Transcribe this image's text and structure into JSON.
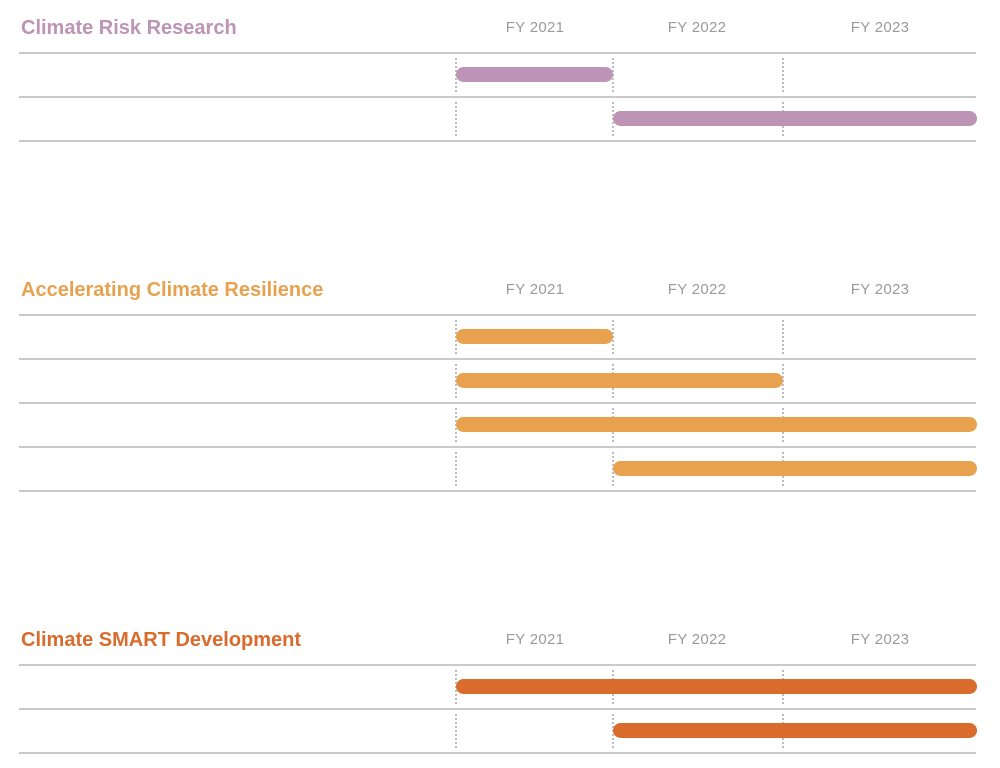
{
  "chart_data": [
    {
      "type": "gantt",
      "title": "Climate Risk Research",
      "color": "#bd94b6",
      "categories": [
        "FY 2021",
        "FY 2022",
        "FY 2023"
      ],
      "rows": [
        {
          "start": "FY 2021",
          "end": "FY 2021"
        },
        {
          "start": "FY 2022",
          "end": "FY 2023"
        }
      ]
    },
    {
      "type": "gantt",
      "title": "Accelerating Climate Resilience",
      "color": "#e8a24f",
      "categories": [
        "FY 2021",
        "FY 2022",
        "FY 2023"
      ],
      "rows": [
        {
          "start": "FY 2021",
          "end": "FY 2021"
        },
        {
          "start": "FY 2021",
          "end": "FY 2022"
        },
        {
          "start": "FY 2021",
          "end": "FY 2023"
        },
        {
          "start": "FY 2022",
          "end": "FY 2023"
        }
      ]
    },
    {
      "type": "gantt",
      "title": "Climate SMART Development",
      "color": "#d96b2c",
      "categories": [
        "FY 2021",
        "FY 2022",
        "FY 2023"
      ],
      "rows": [
        {
          "start": "FY 2021",
          "end": "FY 2023"
        },
        {
          "start": "FY 2022",
          "end": "FY 2023"
        }
      ]
    }
  ]
}
